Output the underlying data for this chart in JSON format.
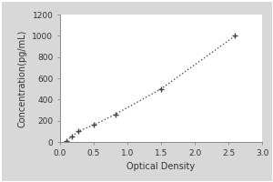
{
  "x_data": [
    0.1,
    0.18,
    0.27,
    0.5,
    0.82,
    1.5,
    2.6
  ],
  "y_data": [
    10,
    55,
    100,
    160,
    260,
    500,
    1000
  ],
  "xlabel": "Optical Density",
  "ylabel": "Concentration(pg/mL)",
  "xlim": [
    0,
    3
  ],
  "ylim": [
    0,
    1200
  ],
  "xticks": [
    0,
    0.5,
    1,
    1.5,
    2,
    2.5,
    3
  ],
  "yticks": [
    0,
    200,
    400,
    600,
    800,
    1000,
    1200
  ],
  "line_color": "#555555",
  "marker_color": "#444444",
  "marker": "+",
  "linestyle": "dotted",
  "outer_bg_color": "#d8d8d8",
  "plot_bg_color": "#ffffff",
  "marker_size": 5,
  "marker_linewidth": 1.0,
  "linewidth": 1.0,
  "xlabel_fontsize": 7,
  "ylabel_fontsize": 7,
  "tick_fontsize": 6.5,
  "spine_color": "#888888",
  "tick_color": "#888888"
}
